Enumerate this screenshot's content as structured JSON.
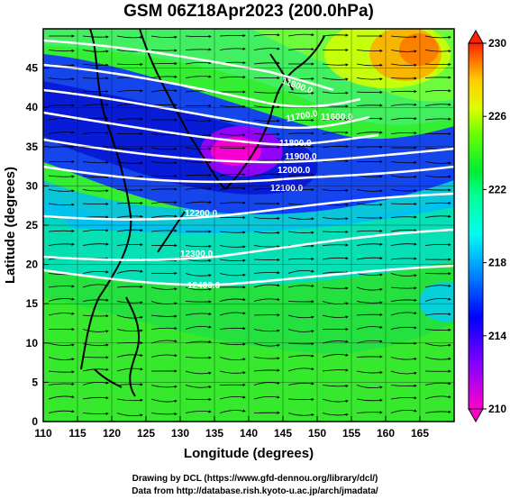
{
  "title": "GSM 06Z18Apr2023 (200.0hPa)",
  "xlabel": "Longitude (degrees)",
  "ylabel": "Latitude  (degrees)",
  "x_ticks": [
    "110",
    "115",
    "120",
    "125",
    "130",
    "135",
    "140",
    "145",
    "150",
    "155",
    "160",
    "165"
  ],
  "y_ticks": [
    "0",
    "5",
    "10",
    "15",
    "20",
    "25",
    "30",
    "35",
    "40",
    "45"
  ],
  "colorbar": {
    "ticks": [
      "210",
      "214",
      "218",
      "222",
      "226",
      "230"
    ],
    "range": [
      210,
      230
    ]
  },
  "contour_labels": [
    "11800.0",
    "11700.0",
    "11800.0",
    "11900.0",
    "12000.0",
    "12100.0",
    "12200.0",
    "12300.0",
    "12400.0",
    "11600.0"
  ],
  "credits": {
    "line1": "Drawing by DCL (https://www.gfd-dennou.org/library/dcl/)",
    "line2": "Data from http://database.rish.kyoto-u.ac.jp/arch/jmadata/"
  },
  "chart_data": {
    "type": "heatmap",
    "title": "GSM 06Z18Apr2023 (200.0hPa)",
    "xlabel": "Longitude (degrees)",
    "ylabel": "Latitude  (degrees)",
    "xlim": [
      110,
      170
    ],
    "ylim": [
      0,
      50
    ],
    "color_range": [
      210,
      230
    ],
    "grid": true,
    "contour_levels": [
      11600,
      11700,
      11800,
      11900,
      12000,
      12100,
      12200,
      12300,
      12400
    ]
  }
}
